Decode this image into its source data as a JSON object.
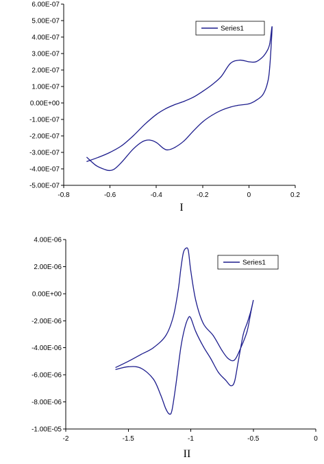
{
  "figure_labels": [
    "I",
    "II"
  ],
  "colors": {
    "series": "#1c1c8c",
    "axis": "#000000",
    "background": "#ffffff"
  },
  "chart_data": [
    {
      "type": "line",
      "title": "",
      "xlabel": "",
      "ylabel": "",
      "caption": "I",
      "xlim": [
        -0.8,
        0.2
      ],
      "ylim": [
        -5e-07,
        6e-07
      ],
      "x_ticks": [
        -0.8,
        -0.6,
        -0.4,
        -0.2,
        0,
        0.2
      ],
      "x_tick_labels": [
        "-0.8",
        "-0.6",
        "-0.4",
        "-0.2",
        "0",
        "0.2"
      ],
      "y_ticks": [
        6e-07,
        5e-07,
        4e-07,
        3e-07,
        2e-07,
        1e-07,
        0,
        -1e-07,
        -2e-07,
        -3e-07,
        -4e-07,
        -5e-07
      ],
      "y_tick_labels": [
        "6.00E-07",
        "5.00E-07",
        "4.00E-07",
        "3.00E-07",
        "2.00E-07",
        "1.00E-07",
        "0.00E+00",
        "-1.00E-07",
        "-2.00E-07",
        "-3.00E-07",
        "-4.00E-07",
        "-5.00E-07"
      ],
      "grid": false,
      "legend": "top-right",
      "series": [
        {
          "name": "Series1",
          "color": "#1c1c8c",
          "x": [
            -0.7,
            -0.66,
            -0.62,
            -0.6,
            -0.58,
            -0.55,
            -0.5,
            -0.46,
            -0.43,
            -0.4,
            -0.37,
            -0.35,
            -0.32,
            -0.28,
            -0.24,
            -0.2,
            -0.16,
            -0.12,
            -0.08,
            -0.05,
            0.0,
            0.03,
            0.06,
            0.08,
            0.09,
            0.1,
            0.09,
            0.08,
            0.06,
            0.03,
            0.0,
            -0.04,
            -0.08,
            -0.12,
            -0.16,
            -0.2,
            -0.24,
            -0.28,
            -0.32,
            -0.36,
            -0.4,
            -0.45,
            -0.5,
            -0.55,
            -0.6,
            -0.65,
            -0.7
          ],
          "y": [
            -3.3e-07,
            -3.8e-07,
            -4.05e-07,
            -4.1e-07,
            -4e-07,
            -3.6e-07,
            -2.8e-07,
            -2.35e-07,
            -2.25e-07,
            -2.4e-07,
            -2.75e-07,
            -2.85e-07,
            -2.7e-07,
            -2.3e-07,
            -1.7e-07,
            -1.15e-07,
            -7.5e-08,
            -4.5e-08,
            -2.5e-08,
            -1.5e-08,
            -5e-09,
            1.5e-08,
            5e-08,
            1.2e-07,
            2.2e-07,
            4.6e-07,
            3.6e-07,
            3.2e-07,
            2.8e-07,
            2.5e-07,
            2.5e-07,
            2.6e-07,
            2.4e-07,
            1.6e-07,
            1.1e-07,
            7e-08,
            3.5e-08,
            1e-08,
            -1e-08,
            -3.5e-08,
            -7e-08,
            -1.3e-07,
            -2e-07,
            -2.6e-07,
            -3e-07,
            -3.3e-07,
            -3.55e-07
          ]
        }
      ]
    },
    {
      "type": "line",
      "title": "",
      "xlabel": "",
      "ylabel": "",
      "caption": "II",
      "xlim": [
        -2,
        0
      ],
      "ylim": [
        -1e-05,
        4e-06
      ],
      "x_ticks": [
        -2,
        -1.5,
        -1,
        -0.5,
        0
      ],
      "x_tick_labels": [
        "-2",
        "-1.5",
        "-1",
        "-0.5",
        "0"
      ],
      "y_ticks": [
        4e-06,
        2e-06,
        0,
        -2e-06,
        -4e-06,
        -6e-06,
        -8e-06,
        -1e-05
      ],
      "y_tick_labels": [
        "4.00E-06",
        "2.00E-06",
        "0.00E+00",
        "-2.00E-06",
        "-4.00E-06",
        "-6.00E-06",
        "-8.00E-06",
        "-1.00E-05"
      ],
      "grid": false,
      "legend": "top-right",
      "series": [
        {
          "name": "Series1",
          "color": "#1c1c8c",
          "x": [
            -1.6,
            -1.5,
            -1.4,
            -1.3,
            -1.24,
            -1.2,
            -1.17,
            -1.15,
            -1.12,
            -1.08,
            -1.05,
            -1.02,
            -1.0,
            -0.96,
            -0.9,
            -0.84,
            -0.78,
            -0.72,
            -0.68,
            -0.65,
            -0.62,
            -0.58,
            -0.55,
            -0.52,
            -0.5,
            -0.52,
            -0.55,
            -0.6,
            -0.65,
            -0.7,
            -0.75,
            -0.82,
            -0.9,
            -0.96,
            -1.0,
            -1.02,
            -1.04,
            -1.06,
            -1.08,
            -1.1,
            -1.14,
            -1.2,
            -1.3,
            -1.4,
            -1.5,
            -1.6
          ],
          "y": [
            -5.6e-06,
            -5.4e-06,
            -5.5e-06,
            -6.3e-06,
            -7.5e-06,
            -8.5e-06,
            -8.9e-06,
            -8.6e-06,
            -6.8e-06,
            -4e-06,
            -2.6e-06,
            -1.8e-06,
            -1.8e-06,
            -2.8e-06,
            -3.9e-06,
            -4.8e-06,
            -5.8e-06,
            -6.4e-06,
            -6.8e-06,
            -6.5e-06,
            -5e-06,
            -3e-06,
            -2.2e-06,
            -1.3e-06,
            -5e-07,
            -1.4e-06,
            -2.8e-06,
            -4e-06,
            -4.9e-06,
            -4.8e-06,
            -4.2e-06,
            -3.1e-06,
            -2.2e-06,
            -5e-07,
            1.7e-06,
            3.2e-06,
            3.35e-06,
            3e-06,
            1.8e-06,
            3e-07,
            -1.7e-06,
            -3.1e-06,
            -4e-06,
            -4.5e-06,
            -5e-06,
            -5.45e-06
          ]
        }
      ]
    }
  ]
}
